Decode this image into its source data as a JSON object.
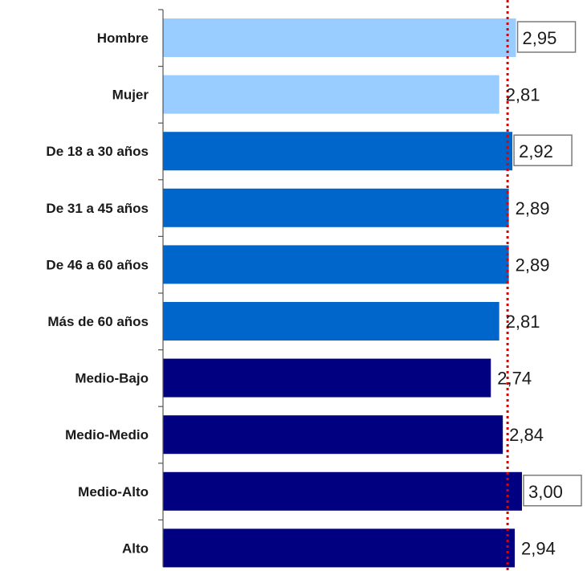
{
  "chart_data": {
    "type": "bar",
    "orientation": "horizontal",
    "categories": [
      "Hombre",
      "Mujer",
      "De 18 a 30 años",
      "De 31 a 45 años",
      "De 46 a 60 años",
      "Más de 60 años",
      "Medio-Bajo",
      "Medio-Medio",
      "Medio-Alto",
      "Alto"
    ],
    "values": [
      2.95,
      2.81,
      2.92,
      2.89,
      2.89,
      2.81,
      2.74,
      2.84,
      3.0,
      2.94
    ],
    "value_labels": [
      "2,95",
      "2,81",
      "2,92",
      "2,89",
      "2,89",
      "2,81",
      "2,74",
      "2,84",
      "3,00",
      "2,94"
    ],
    "boxed_labels": [
      true,
      false,
      true,
      false,
      false,
      false,
      false,
      false,
      true,
      false
    ],
    "bar_colors": [
      "#99ccff",
      "#99ccff",
      "#0066cc",
      "#0066cc",
      "#0066cc",
      "#0066cc",
      "#000080",
      "#000080",
      "#000080",
      "#000080"
    ],
    "reference_line": {
      "value": 2.88,
      "color": "#e00000",
      "style": "dotted"
    },
    "xlim": [
      0,
      3.0
    ],
    "grid": false,
    "legend": "none",
    "title": "",
    "xlabel": "",
    "ylabel": ""
  }
}
